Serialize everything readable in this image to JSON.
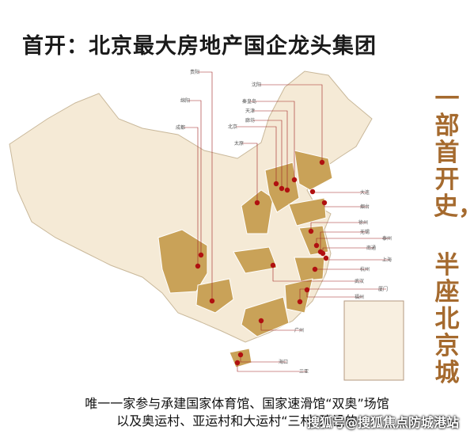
{
  "header": {
    "title": "首开：北京最大房地产国企龙头集团"
  },
  "side_text": [
    "一部首开史，",
    "半座北京城"
  ],
  "map": {
    "cities": [
      "贵阳",
      "绵阳",
      "成都",
      "沈阳",
      "秦皇岛",
      "天津",
      "廊坊",
      "北京",
      "太原",
      "大连",
      "烟台",
      "徐州",
      "无锡",
      "泰州",
      "南通",
      "上海",
      "杭州",
      "武汉",
      "厦门",
      "福州",
      "广州",
      "海口",
      "三亚"
    ]
  },
  "caption": [
    "唯一一家参与承建国家体育馆、国家速滑馆“双奥”场馆",
    "以及奥运村、亚运村和大运村“三村”建设的"
  ],
  "watermark": "搜狐号@搜狐焦点防城港站"
}
